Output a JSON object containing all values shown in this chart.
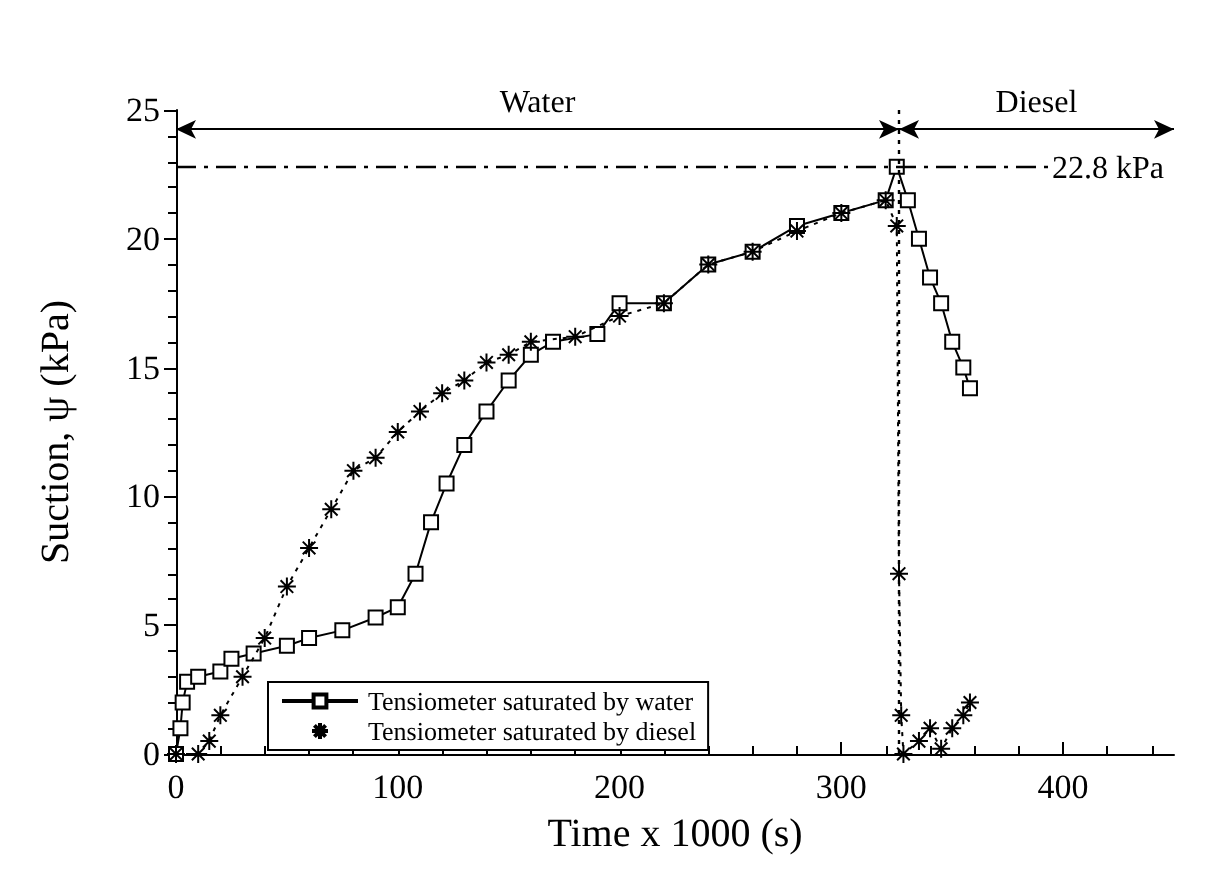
{
  "chart_data": {
    "type": "line",
    "xlabel": "Time x 1000 (s)",
    "ylabel": "Suction, ψ (kPa)",
    "xlim": [
      0,
      450
    ],
    "xticks": [
      0,
      100,
      200,
      300,
      400
    ],
    "ylim": [
      0,
      25
    ],
    "yticks": [
      0,
      5,
      10,
      15,
      20,
      25
    ],
    "grid": false,
    "legend": "bottom left",
    "series": [
      {
        "name": "Tensiometer saturated by water",
        "color": "#000000",
        "marker": "square",
        "line_style": "solid",
        "x": [
          0,
          2,
          3,
          5,
          10,
          20,
          25,
          35,
          50,
          60,
          75,
          90,
          100,
          108,
          115,
          122,
          130,
          140,
          150,
          160,
          170,
          190,
          200,
          220,
          240,
          260,
          280,
          300,
          320,
          325,
          330,
          335,
          340,
          345,
          350,
          355,
          358
        ],
        "values": [
          0,
          1,
          2,
          2.8,
          3,
          3.2,
          3.7,
          3.9,
          4.2,
          4.5,
          4.8,
          5.3,
          5.7,
          7,
          9,
          10.5,
          12,
          13.3,
          14.5,
          15.5,
          16,
          16.3,
          17.5,
          17.5,
          19,
          19.5,
          20.5,
          21,
          21.5,
          22.8,
          21.5,
          20,
          18.5,
          17.5,
          16,
          15,
          14.2
        ]
      },
      {
        "name": "Tensiometer saturated by diesel",
        "color": "#000000",
        "marker": "cross",
        "line_style": "dotted",
        "x": [
          0,
          10,
          15,
          20,
          30,
          40,
          50,
          60,
          70,
          80,
          90,
          100,
          110,
          120,
          130,
          140,
          150,
          160,
          180,
          200,
          220,
          240,
          260,
          280,
          300,
          320,
          325,
          326,
          327,
          328,
          335,
          340,
          345,
          350,
          355,
          358
        ],
        "values": [
          0,
          0,
          0.5,
          1.5,
          3,
          4.5,
          6.5,
          8,
          9.5,
          11,
          11.5,
          12.5,
          13.3,
          14,
          14.5,
          15.2,
          15.5,
          16,
          16.2,
          17,
          17.5,
          19,
          19.5,
          20.3,
          21,
          21.5,
          20.5,
          7,
          1.5,
          0,
          0.5,
          1,
          0.2,
          1,
          1.5,
          2
        ]
      }
    ],
    "ref_lines": [
      {
        "axis": "y",
        "value": 22.8,
        "label": "22.8 kPa",
        "line_style": "dashed"
      },
      {
        "axis": "x",
        "value": 326,
        "line_style": "dotted"
      }
    ],
    "annotations": [
      "Water",
      "Diesel"
    ]
  }
}
